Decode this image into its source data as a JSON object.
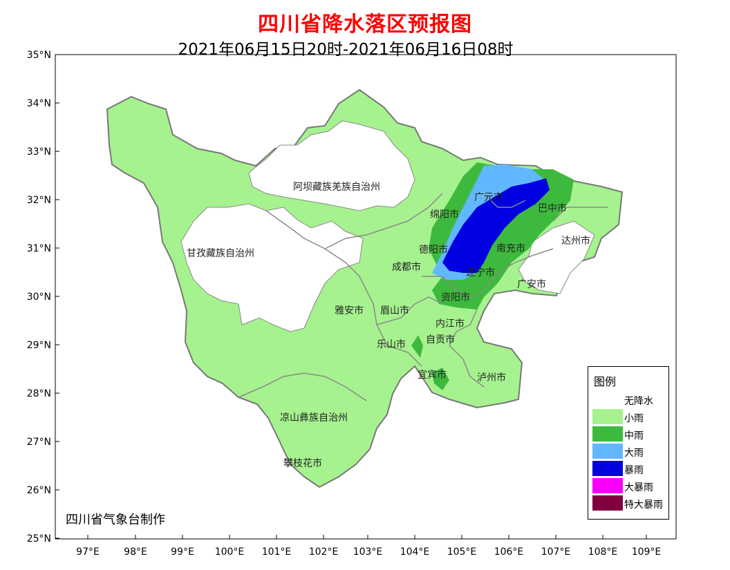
{
  "header": {
    "title": "四川省降水落区预报图",
    "subtitle": "2021年06月15日20时-2021年06月16日08时"
  },
  "axes": {
    "lat_ticks": [
      "35°N",
      "34°N",
      "33°N",
      "32°N",
      "31°N",
      "30°N",
      "29°N",
      "28°N",
      "27°N",
      "26°N",
      "25°N"
    ],
    "lon_ticks": [
      "97°E",
      "98°E",
      "99°E",
      "100°E",
      "101°E",
      "102°E",
      "103°E",
      "104°E",
      "105°E",
      "106°E",
      "107°E",
      "108°E",
      "109°E"
    ]
  },
  "regions": {
    "aba": "阿坝藏族羌族自治州",
    "ganzi": "甘孜藏族自治州",
    "mianyang": "绵阳市",
    "guangyuan": "广元市",
    "bazhong": "巴中市",
    "dazhou": "达州市",
    "deyang": "德阳市",
    "nanchong": "南充市",
    "chengdu": "成都市",
    "suining": "遂宁市",
    "guangan": "广安市",
    "yaan": "雅安市",
    "meishan": "眉山市",
    "ziyang": "资阳市",
    "neijiang": "内江市",
    "leshan": "乐山市",
    "zigong": "自贡市",
    "yibin": "宜宾市",
    "luzhou": "泸州市",
    "liangshan": "凉山彝族自治州",
    "panzhihua": "攀枝花市"
  },
  "legend": {
    "title": "图例",
    "items": [
      {
        "label": "无降水",
        "color": "#ffffff"
      },
      {
        "label": "小雨",
        "color": "#a6f28f"
      },
      {
        "label": "中雨",
        "color": "#3dba3d"
      },
      {
        "label": "大雨",
        "color": "#61b8ff"
      },
      {
        "label": "暴雨",
        "color": "#0000e1"
      },
      {
        "label": "大暴雨",
        "color": "#fa00fa"
      },
      {
        "label": "特大暴雨",
        "color": "#800040"
      }
    ]
  },
  "credit": "四川省气象台制作"
}
